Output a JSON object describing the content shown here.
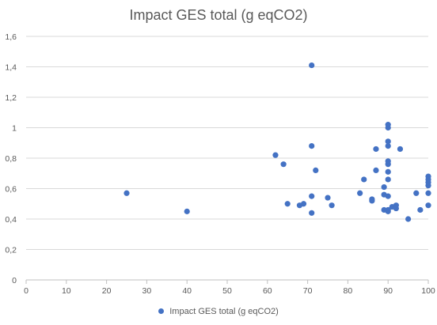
{
  "chart_data": {
    "type": "scatter",
    "title": "Impact GES total (g eqCO2)",
    "xlabel": "",
    "ylabel": "",
    "xlim": [
      0,
      100
    ],
    "ylim": [
      0,
      1.6
    ],
    "x_ticks": [
      "0",
      "10",
      "20",
      "30",
      "40",
      "50",
      "60",
      "70",
      "80",
      "90",
      "100"
    ],
    "y_ticks": [
      "0",
      "0,2",
      "0,4",
      "0,6",
      "0,8",
      "1",
      "1,2",
      "1,4",
      "1,6"
    ],
    "grid": "horizontal",
    "legend_position": "bottom",
    "series": [
      {
        "name": "Impact GES total (g eqCO2)",
        "color": "#4472c4",
        "points": [
          [
            25,
            0.57
          ],
          [
            40,
            0.45
          ],
          [
            62,
            0.82
          ],
          [
            64,
            0.76
          ],
          [
            65,
            0.5
          ],
          [
            68,
            0.49
          ],
          [
            69,
            0.5
          ],
          [
            71,
            1.41
          ],
          [
            71,
            0.88
          ],
          [
            71,
            0.55
          ],
          [
            71,
            0.44
          ],
          [
            72,
            0.72
          ],
          [
            75,
            0.54
          ],
          [
            76,
            0.49
          ],
          [
            83,
            0.57
          ],
          [
            84,
            0.66
          ],
          [
            86,
            0.53
          ],
          [
            86,
            0.52
          ],
          [
            87,
            0.86
          ],
          [
            87,
            0.72
          ],
          [
            89,
            0.61
          ],
          [
            89,
            0.56
          ],
          [
            89,
            0.46
          ],
          [
            90,
            1.02
          ],
          [
            90,
            1.0
          ],
          [
            90,
            0.91
          ],
          [
            90,
            0.88
          ],
          [
            90,
            0.78
          ],
          [
            90,
            0.76
          ],
          [
            90,
            0.71
          ],
          [
            90,
            0.66
          ],
          [
            90,
            0.55
          ],
          [
            90,
            0.46
          ],
          [
            90,
            0.45
          ],
          [
            91,
            0.48
          ],
          [
            92,
            0.49
          ],
          [
            92,
            0.47
          ],
          [
            93,
            0.86
          ],
          [
            95,
            0.4
          ],
          [
            97,
            0.57
          ],
          [
            98,
            0.46
          ],
          [
            100,
            0.68
          ],
          [
            100,
            0.66
          ],
          [
            100,
            0.64
          ],
          [
            100,
            0.62
          ],
          [
            100,
            0.57
          ],
          [
            100,
            0.49
          ]
        ]
      }
    ]
  }
}
